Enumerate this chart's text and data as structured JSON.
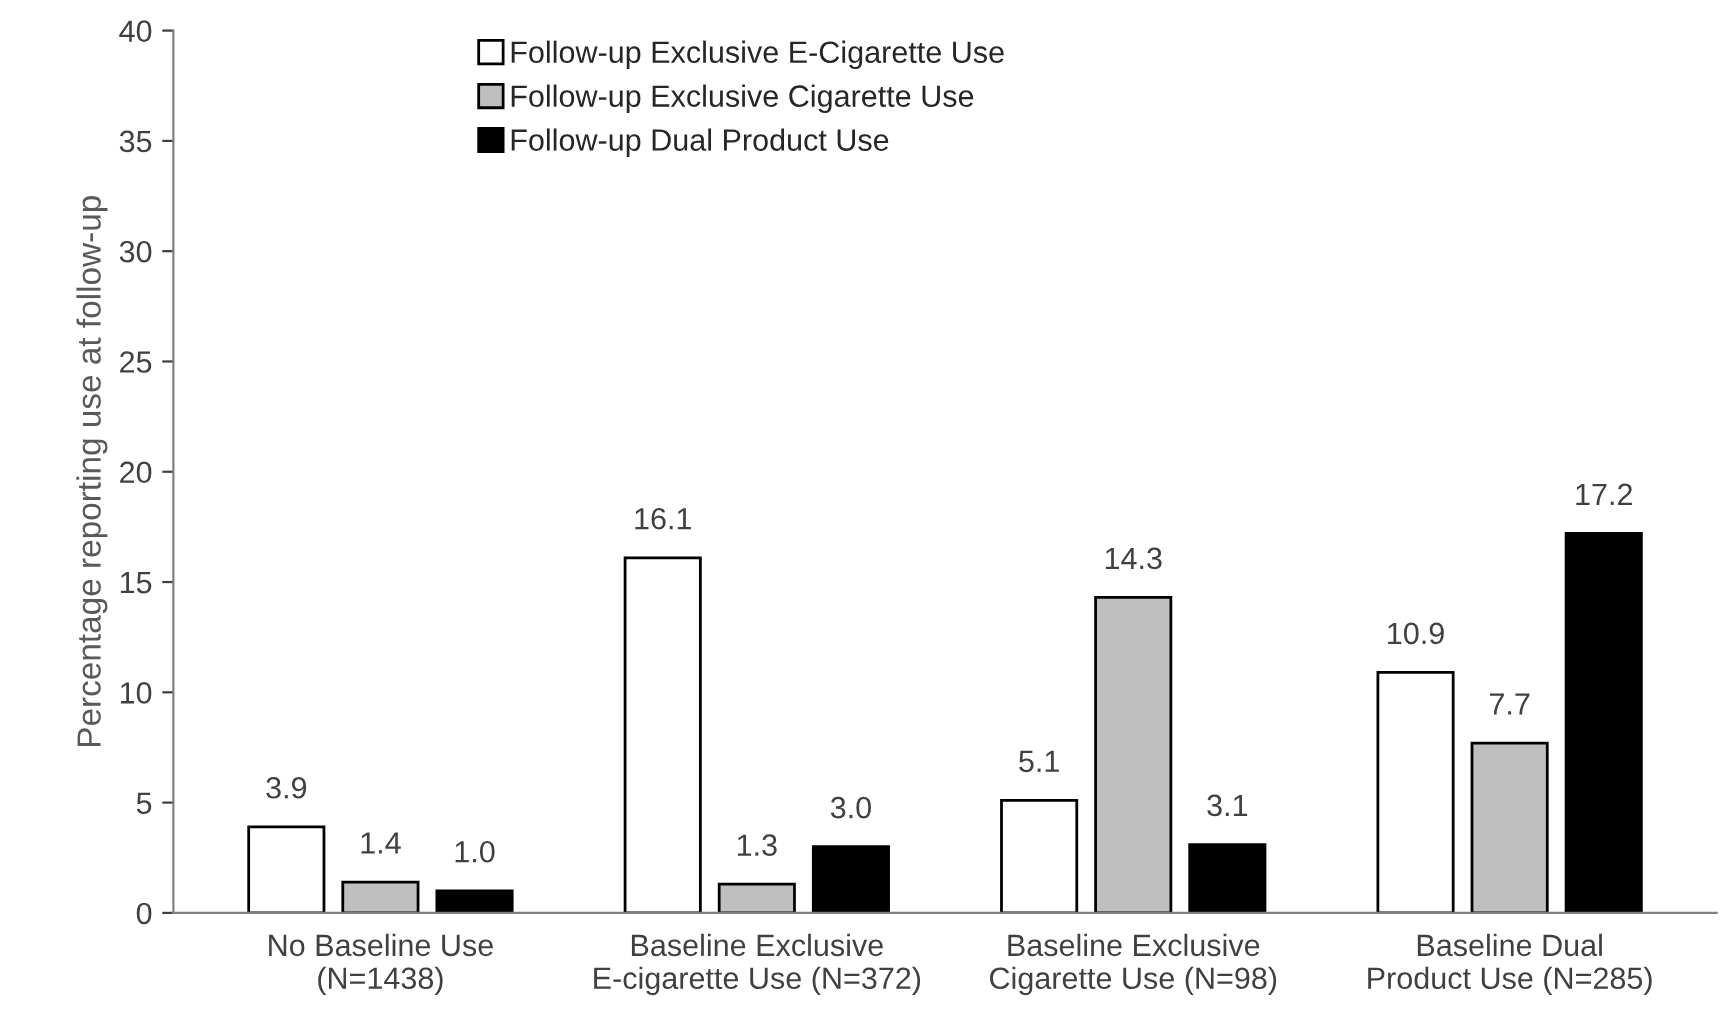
{
  "chart_data": {
    "type": "bar",
    "ylabel": "Percentage reporting use at follow-up",
    "categories": [
      "No Baseline Use\n(N=1438)",
      "Baseline Exclusive\nE-cigarette Use (N=372)",
      "Baseline Exclusive\nCigarette Use (N=98)",
      "Baseline Dual\nProduct Use (N=285)"
    ],
    "series": [
      {
        "name": "Follow-up Exclusive E-Cigarette Use",
        "color": "#ffffff",
        "values": [
          3.9,
          16.1,
          5.1,
          10.9
        ],
        "value_labels": [
          "3.9",
          "16.1",
          "5.1",
          "10.9"
        ]
      },
      {
        "name": "Follow-up Exclusive Cigarette Use",
        "color": "#bfbfbf",
        "values": [
          1.4,
          1.3,
          14.3,
          7.7
        ],
        "value_labels": [
          "1.4",
          "1.3",
          "14.3",
          "7.7"
        ]
      },
      {
        "name": "Follow-up Dual Product Use",
        "color": "#000000",
        "values": [
          1.0,
          3.0,
          3.1,
          17.2
        ],
        "value_labels": [
          "1.0",
          "3.0",
          "3.1",
          "17.2"
        ]
      }
    ],
    "ylim": [
      0,
      40
    ],
    "yticks": [
      0,
      5,
      10,
      15,
      20,
      25,
      30,
      35,
      40
    ],
    "grid": false,
    "legend": "top"
  }
}
